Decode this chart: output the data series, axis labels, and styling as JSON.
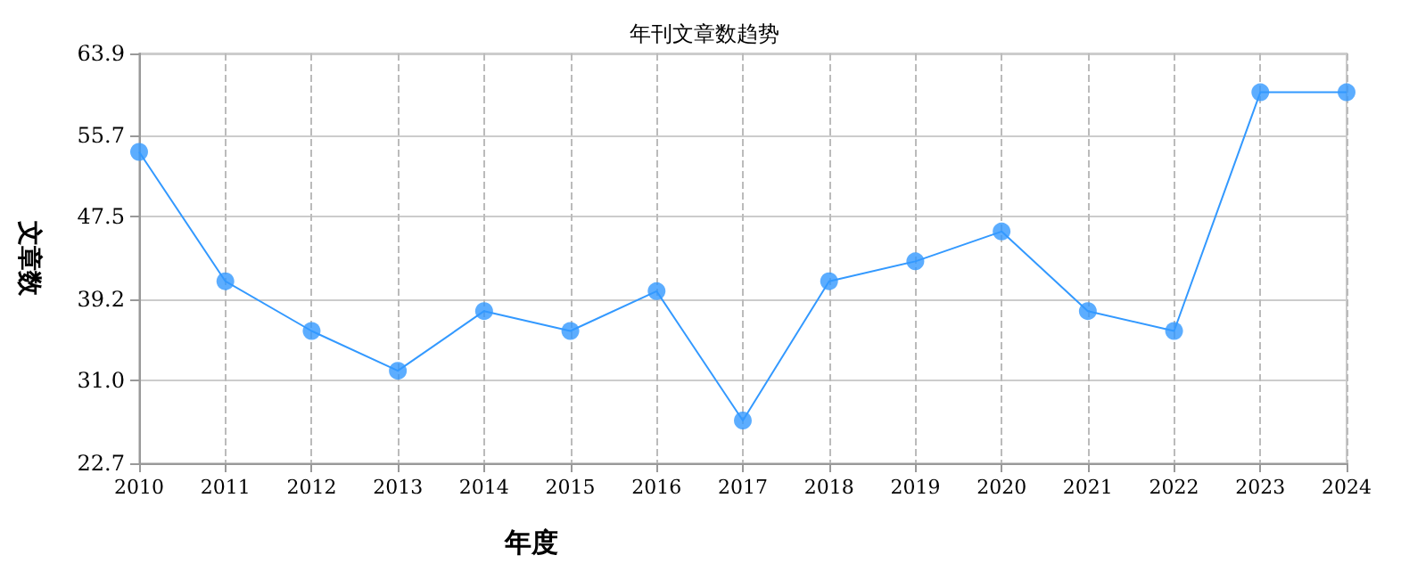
{
  "chart_data": {
    "type": "line",
    "title": "年刊文章数趋势",
    "xlabel": "年度",
    "ylabel": "文章数",
    "categories": [
      "2010",
      "2011",
      "2012",
      "2013",
      "2014",
      "2015",
      "2016",
      "2017",
      "2018",
      "2019",
      "2020",
      "2021",
      "2022",
      "2023",
      "2024"
    ],
    "series": [
      {
        "color": "#3399ff",
        "values": [
          54,
          41,
          36,
          32,
          38,
          36,
          40,
          27,
          41,
          43,
          46,
          38,
          36,
          60,
          60
        ]
      }
    ],
    "ylim": [
      22.7,
      63.9
    ],
    "yticks": [
      22.7,
      {
        "value": 31,
        "label": "31.0"
      },
      39.2,
      47.5,
      55.7,
      63.9
    ],
    "grid": true,
    "marker": "circle",
    "line_style": "solid"
  }
}
